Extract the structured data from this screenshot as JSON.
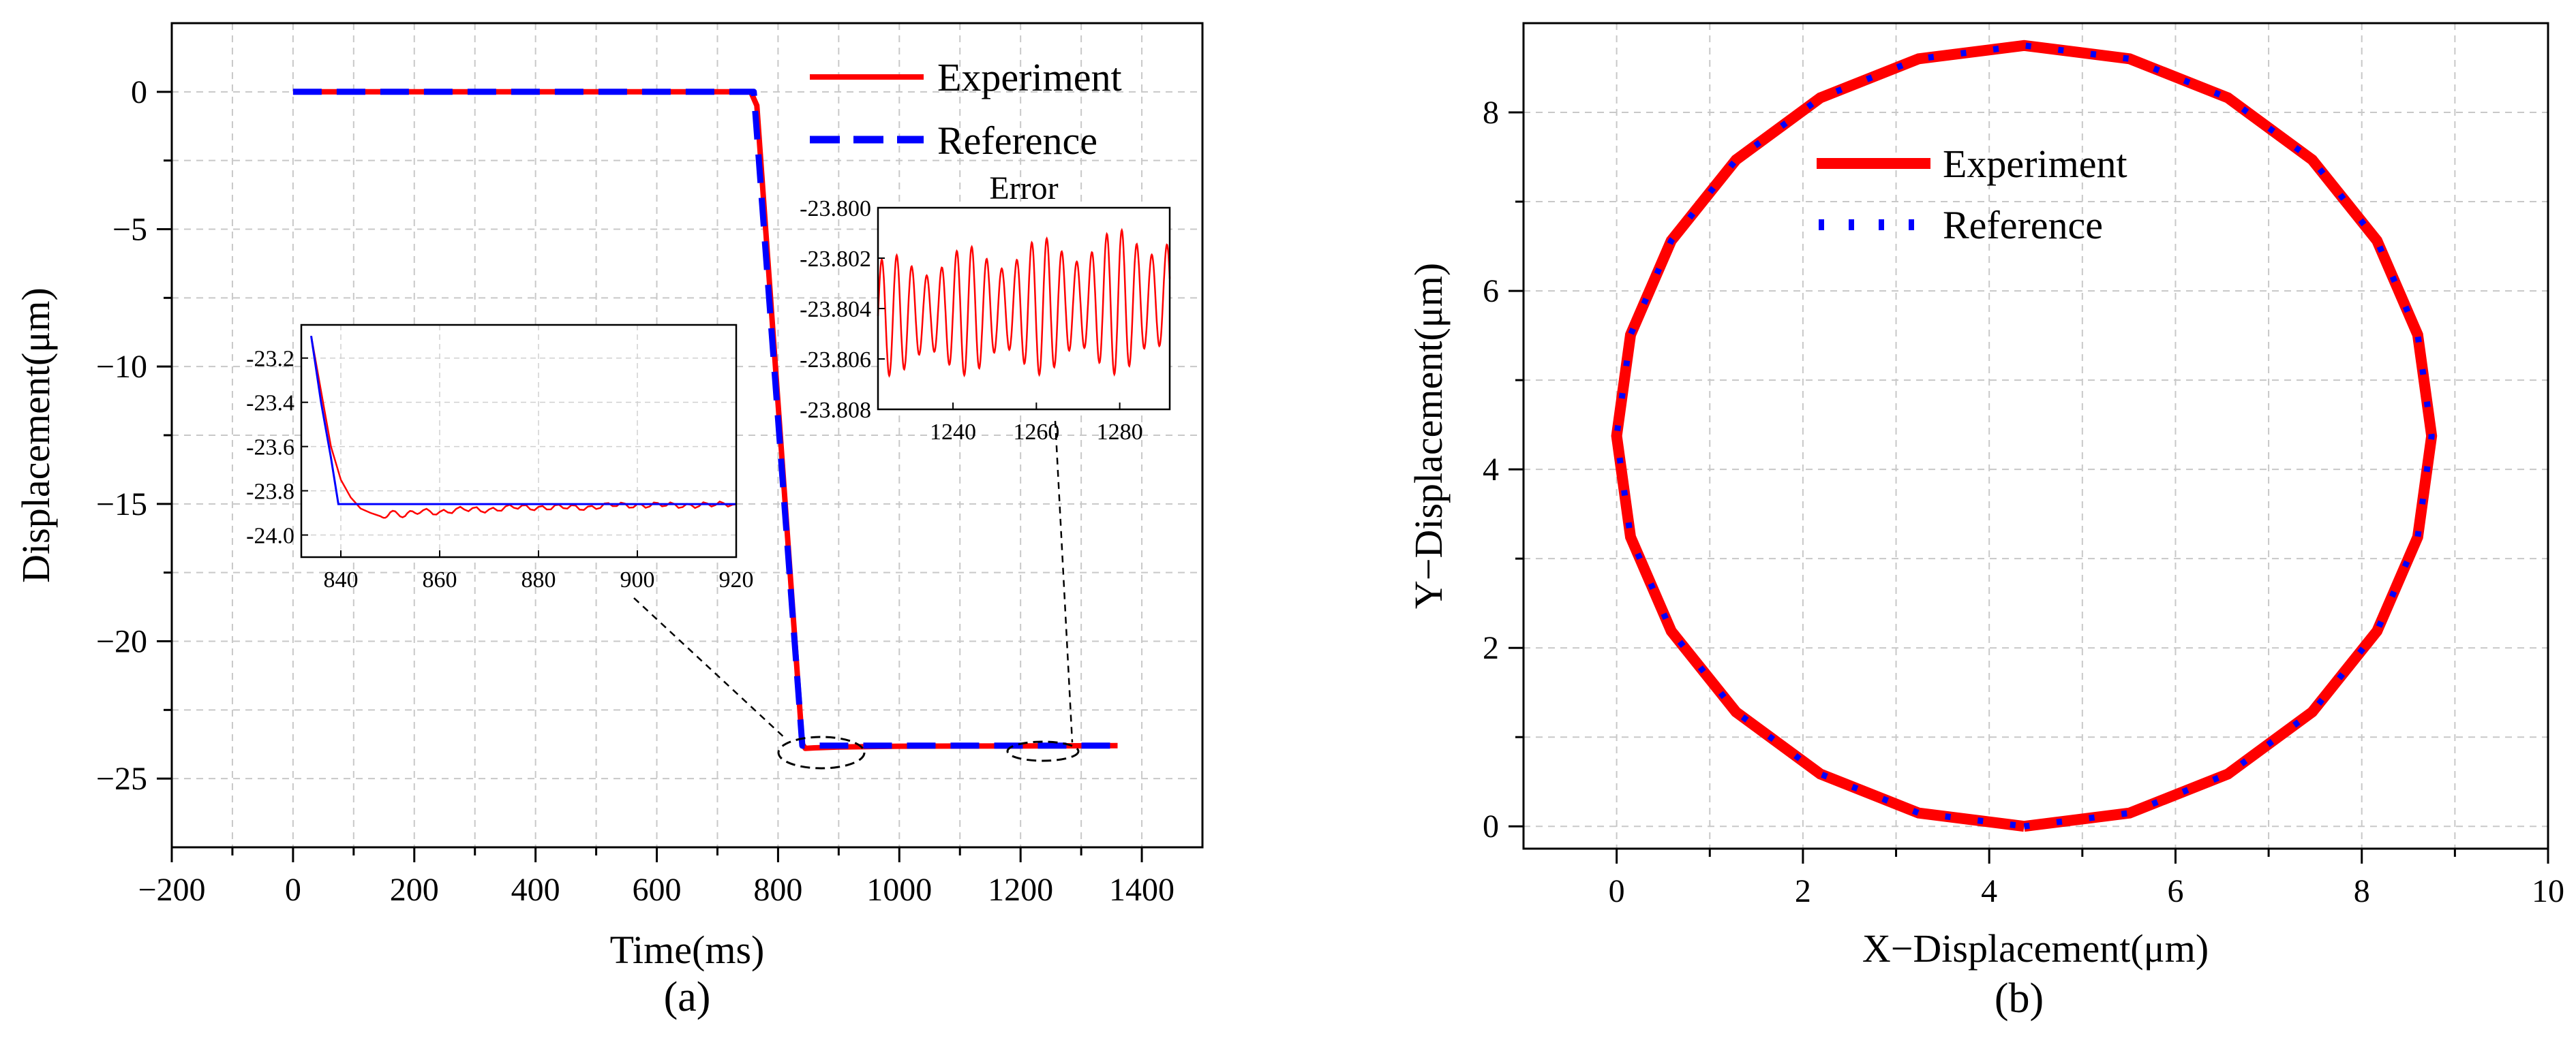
{
  "chart_data": [
    {
      "id": "a",
      "type": "line",
      "caption": "(a)",
      "xlabel": "Time(ms)",
      "ylabel": "Displacement(μm)",
      "xlim": [
        -200,
        1500
      ],
      "ylim": [
        -27.5,
        2.5
      ],
      "xticks": [
        -200,
        0,
        200,
        400,
        600,
        800,
        1000,
        1200,
        1400
      ],
      "xtick_labels": [
        "−200",
        "0",
        "200",
        "400",
        "600",
        "800",
        "1000",
        "1200",
        "1400"
      ],
      "yticks": [
        0,
        -5,
        -10,
        -15,
        -20,
        -25
      ],
      "ytick_labels": [
        "0",
        "−5",
        "−10",
        "−15",
        "−20",
        "−25"
      ],
      "grid": true,
      "legend_position": "top-right",
      "series": [
        {
          "name": "Experiment",
          "color": "#ff0000",
          "style": "solid",
          "x": [
            0,
            755,
            765,
            840,
            845,
            860,
            900,
            1000,
            1200,
            1360
          ],
          "y": [
            0,
            0,
            -0.5,
            -23.75,
            -23.9,
            -23.88,
            -23.85,
            -23.82,
            -23.81,
            -23.8
          ]
        },
        {
          "name": "Reference",
          "color": "#0000ff",
          "style": "dashed",
          "x": [
            0,
            760,
            840,
            1360
          ],
          "y": [
            0,
            0,
            -23.8,
            -23.8
          ]
        }
      ],
      "insets": [
        {
          "id": "inset-left",
          "xlim": [
            832,
            920
          ],
          "ylim": [
            -24.1,
            -23.05
          ],
          "xticks": [
            840,
            860,
            880,
            900,
            920
          ],
          "xtick_labels": [
            "840",
            "860",
            "880",
            "900",
            "920"
          ],
          "yticks": [
            -23.2,
            -23.4,
            -23.6,
            -23.8,
            -24.0
          ],
          "ytick_labels": [
            "-23.2",
            "-23.4",
            "-23.6",
            "-23.8",
            "-24.0"
          ],
          "series": [
            {
              "name": "Experiment",
              "color": "#ff0000",
              "x": [
                834,
                836,
                838,
                840,
                842,
                844,
                846,
                848,
                850,
                853,
                856,
                860,
                865,
                870,
                875,
                880,
                885,
                890,
                895,
                900,
                905,
                910,
                915,
                920
              ],
              "y": [
                -23.1,
                -23.35,
                -23.6,
                -23.75,
                -23.83,
                -23.88,
                -23.9,
                -23.92,
                -23.9,
                -23.91,
                -23.89,
                -23.9,
                -23.88,
                -23.89,
                -23.87,
                -23.88,
                -23.87,
                -23.88,
                -23.86,
                -23.87,
                -23.86,
                -23.87,
                -23.86,
                -23.86
              ]
            },
            {
              "name": "Reference",
              "color": "#0000ff",
              "x": [
                834,
                836,
                838,
                839.5,
                920
              ],
              "y": [
                -23.1,
                -23.4,
                -23.65,
                -23.86,
                -23.86
              ]
            }
          ]
        },
        {
          "id": "inset-right",
          "title": "Error",
          "xlim": [
            1222,
            1292
          ],
          "ylim": [
            -23.808,
            -23.8
          ],
          "xticks": [
            1240,
            1260,
            1280
          ],
          "xtick_labels": [
            "1240",
            "1260",
            "1280"
          ],
          "yticks": [
            -23.8,
            -23.802,
            -23.804,
            -23.806,
            -23.808
          ],
          "ytick_labels": [
            "-23.800",
            "-23.802",
            "-23.804",
            "-23.806",
            "-23.808"
          ],
          "series": [
            {
              "name": "Error",
              "color": "#ff0000",
              "oscillation": {
                "x_start": 1222,
                "x_end": 1292,
                "period": 3.6,
                "center_start": -23.8043,
                "center_end": -23.8036,
                "amp_start": 0.0019,
                "amp_end": 0.0024
              }
            }
          ]
        }
      ]
    },
    {
      "id": "b",
      "type": "line",
      "caption": "(b)",
      "xlabel": "X−Displacement(μm)",
      "ylabel": "Y−Displacement(μm)",
      "xlim": [
        -1,
        10
      ],
      "ylim": [
        -0.25,
        9
      ],
      "xticks": [
        0,
        2,
        4,
        6,
        8,
        10
      ],
      "xtick_labels": [
        "0",
        "2",
        "4",
        "6",
        "8",
        "10"
      ],
      "yticks": [
        0,
        2,
        4,
        6,
        8
      ],
      "ytick_labels": [
        "0",
        "2",
        "4",
        "6",
        "8"
      ],
      "grid": true,
      "legend_position": "top-center",
      "series": [
        {
          "name": "Experiment",
          "color": "#ff0000",
          "style": "solid",
          "circle": {
            "cx": 4.375,
            "cy": 4.375,
            "r": 4.375,
            "segments": 24
          }
        },
        {
          "name": "Reference",
          "color": "#0000ff",
          "style": "dotted",
          "circle": {
            "cx": 4.375,
            "cy": 4.375,
            "r": 4.375,
            "segments": 24
          }
        }
      ]
    }
  ]
}
